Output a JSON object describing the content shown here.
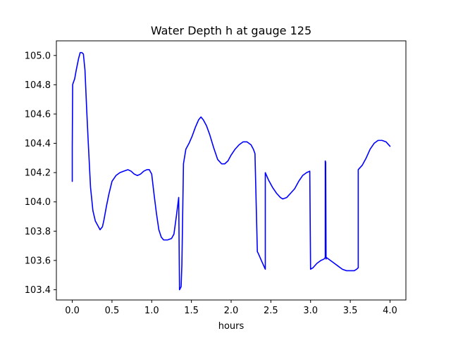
{
  "chart_data": {
    "type": "line",
    "title": "Water Depth h at gauge 125",
    "xlabel": "hours",
    "ylabel": "",
    "xlim": [
      -0.2,
      4.2
    ],
    "ylim": [
      103.33,
      105.1
    ],
    "xticks": [
      0.0,
      0.5,
      1.0,
      1.5,
      2.0,
      2.5,
      3.0,
      3.5,
      4.0
    ],
    "xtick_labels": [
      "0.0",
      "0.5",
      "1.0",
      "1.5",
      "2.0",
      "2.5",
      "3.0",
      "3.5",
      "4.0"
    ],
    "yticks": [
      103.4,
      103.6,
      103.8,
      104.0,
      104.2,
      104.4,
      104.6,
      104.8,
      105.0
    ],
    "ytick_labels": [
      "103.4",
      "103.6",
      "103.8",
      "104.0",
      "104.2",
      "104.4",
      "104.6",
      "104.8",
      "105.0"
    ],
    "grid": false,
    "series": [
      {
        "color": "#0000ff",
        "x": [
          0.0,
          0.0,
          0.005,
          0.01,
          0.03,
          0.05,
          0.08,
          0.1,
          0.12,
          0.14,
          0.16,
          0.18,
          0.2,
          0.23,
          0.26,
          0.29,
          0.32,
          0.35,
          0.38,
          0.4,
          0.43,
          0.46,
          0.5,
          0.55,
          0.6,
          0.65,
          0.7,
          0.74,
          0.78,
          0.82,
          0.86,
          0.9,
          0.94,
          0.97,
          1.0,
          1.03,
          1.06,
          1.09,
          1.12,
          1.15,
          1.2,
          1.25,
          1.28,
          1.31,
          1.34,
          1.35,
          1.37,
          1.38,
          1.4,
          1.43,
          1.47,
          1.51,
          1.55,
          1.59,
          1.62,
          1.65,
          1.69,
          1.73,
          1.78,
          1.83,
          1.88,
          1.92,
          1.96,
          2.0,
          2.05,
          2.1,
          2.15,
          2.2,
          2.25,
          2.28,
          2.3,
          2.33,
          2.34,
          2.38,
          2.43,
          2.43,
          2.47,
          2.52,
          2.57,
          2.62,
          2.65,
          2.7,
          2.75,
          2.8,
          2.85,
          2.9,
          2.95,
          2.99,
          3.0,
          3.03,
          3.08,
          3.13,
          3.17,
          3.185,
          3.185,
          3.19,
          3.195,
          3.2,
          3.25,
          3.3,
          3.35,
          3.4,
          3.45,
          3.5,
          3.55,
          3.58,
          3.6,
          3.6,
          3.65,
          3.7,
          3.75,
          3.8,
          3.85,
          3.9,
          3.95,
          4.0
        ],
        "y": [
          104.14,
          104.37,
          104.8,
          104.81,
          104.84,
          104.9,
          104.98,
          105.02,
          105.02,
          105.01,
          104.9,
          104.65,
          104.42,
          104.1,
          103.94,
          103.87,
          103.84,
          103.81,
          103.83,
          103.88,
          103.97,
          104.05,
          104.14,
          104.18,
          104.2,
          104.21,
          104.22,
          104.21,
          104.19,
          104.18,
          104.19,
          104.21,
          104.22,
          104.22,
          104.19,
          104.05,
          103.92,
          103.81,
          103.76,
          103.74,
          103.74,
          103.75,
          103.78,
          103.9,
          104.03,
          103.4,
          103.42,
          103.57,
          104.26,
          104.36,
          104.4,
          104.45,
          104.51,
          104.56,
          104.58,
          104.56,
          104.52,
          104.46,
          104.37,
          104.29,
          104.26,
          104.26,
          104.28,
          104.32,
          104.36,
          104.39,
          104.41,
          104.41,
          104.39,
          104.36,
          104.33,
          103.66,
          103.65,
          103.6,
          103.54,
          104.2,
          104.15,
          104.1,
          104.06,
          104.03,
          104.02,
          104.03,
          104.06,
          104.09,
          104.14,
          104.18,
          104.2,
          104.21,
          103.54,
          103.55,
          103.58,
          103.6,
          103.61,
          103.62,
          104.28,
          104.27,
          103.61,
          103.62,
          103.6,
          103.58,
          103.56,
          103.54,
          103.53,
          103.53,
          103.53,
          103.54,
          103.55,
          104.22,
          104.25,
          104.3,
          104.36,
          104.4,
          104.42,
          104.42,
          104.41,
          104.38
        ]
      }
    ]
  }
}
